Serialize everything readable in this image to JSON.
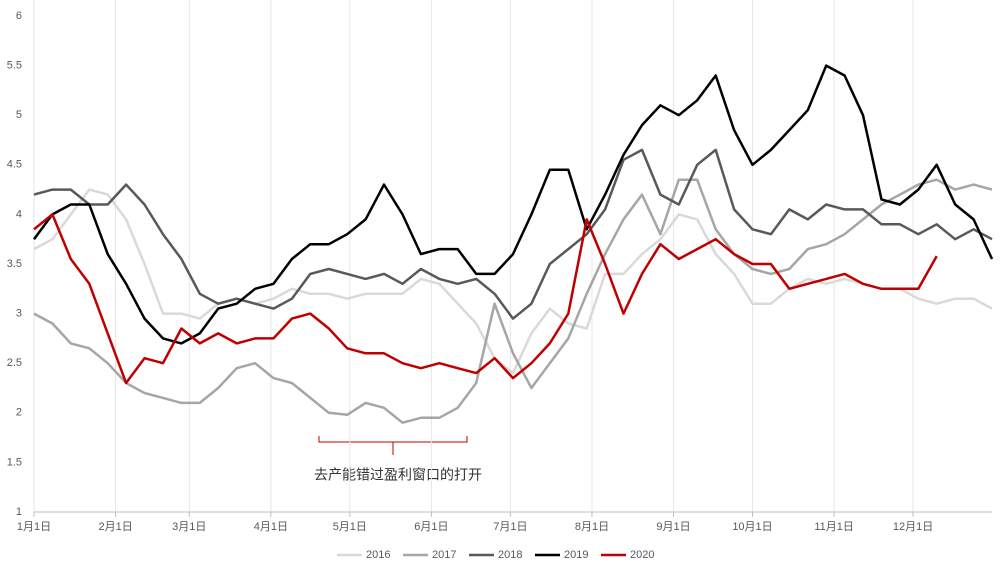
{
  "chart_data": {
    "type": "line",
    "x": [
      1,
      8,
      15,
      22,
      29,
      36,
      43,
      50,
      57,
      64,
      71,
      78,
      85,
      92,
      99,
      106,
      113,
      120,
      127,
      134,
      141,
      148,
      155,
      162,
      169,
      176,
      183,
      190,
      197,
      204,
      211,
      218,
      225,
      232,
      239,
      246,
      253,
      260,
      267,
      274,
      281,
      288,
      295,
      302,
      309,
      316,
      323,
      330,
      337,
      344,
      351,
      358,
      365
    ],
    "xlim": [
      1,
      365
    ],
    "xticks": [
      {
        "value": 1,
        "label": "1月1日"
      },
      {
        "value": 32,
        "label": "2月1日"
      },
      {
        "value": 60,
        "label": "3月1日"
      },
      {
        "value": 91,
        "label": "4月1日"
      },
      {
        "value": 121,
        "label": "5月1日"
      },
      {
        "value": 152,
        "label": "6月1日"
      },
      {
        "value": 182,
        "label": "7月1日"
      },
      {
        "value": 213,
        "label": "8月1日"
      },
      {
        "value": 244,
        "label": "9月1日"
      },
      {
        "value": 274,
        "label": "10月1日"
      },
      {
        "value": 305,
        "label": "11月1日"
      },
      {
        "value": 335,
        "label": "12月1日"
      }
    ],
    "ylim": [
      1,
      6
    ],
    "yticks": [
      1,
      1.5,
      2,
      2.5,
      3,
      3.5,
      4,
      4.5,
      5,
      5.5,
      6
    ],
    "grid": "x",
    "legend": "bottom",
    "annotations": [
      {
        "text": "去产能错过盈利窗口的打开",
        "x_range": [
          119,
          175
        ]
      }
    ],
    "series": [
      {
        "name": "2016",
        "color": "#d9d9d9",
        "values": [
          3.65,
          3.75,
          4.0,
          4.25,
          4.2,
          3.95,
          3.5,
          3.0,
          3.0,
          2.95,
          3.1,
          3.15,
          3.1,
          3.15,
          3.25,
          3.2,
          3.2,
          3.15,
          3.2,
          3.2,
          3.2,
          3.35,
          3.3,
          3.1,
          2.9,
          2.55,
          2.4,
          2.8,
          3.05,
          2.9,
          2.85,
          3.4,
          3.4,
          3.6,
          3.75,
          4.0,
          3.95,
          3.6,
          3.4,
          3.1,
          3.1,
          3.25,
          3.35,
          3.3,
          3.35,
          3.3,
          3.25,
          3.25,
          3.15,
          3.1,
          3.15,
          3.15,
          3.05
        ]
      },
      {
        "name": "2017",
        "color": "#a6a6a6",
        "values": [
          3.0,
          2.9,
          2.7,
          2.65,
          2.5,
          2.3,
          2.2,
          2.15,
          2.1,
          2.1,
          2.25,
          2.45,
          2.5,
          2.35,
          2.3,
          2.15,
          2.0,
          1.98,
          2.1,
          2.05,
          1.9,
          1.95,
          1.95,
          2.05,
          2.3,
          3.1,
          2.6,
          2.25,
          2.5,
          2.75,
          3.2,
          3.6,
          3.95,
          4.2,
          3.8,
          4.35,
          4.35,
          3.85,
          3.6,
          3.45,
          3.4,
          3.45,
          3.65,
          3.7,
          3.8,
          3.95,
          4.1,
          4.2,
          4.3,
          4.35,
          4.25,
          4.3,
          4.25
        ]
      },
      {
        "name": "2018",
        "color": "#595959",
        "values": [
          4.2,
          4.25,
          4.25,
          4.1,
          4.1,
          4.3,
          4.1,
          3.8,
          3.55,
          3.2,
          3.1,
          3.15,
          3.1,
          3.05,
          3.15,
          3.4,
          3.45,
          3.4,
          3.35,
          3.4,
          3.3,
          3.45,
          3.35,
          3.3,
          3.35,
          3.2,
          2.95,
          3.1,
          3.5,
          3.65,
          3.8,
          4.05,
          4.55,
          4.65,
          4.2,
          4.1,
          4.5,
          4.65,
          4.05,
          3.85,
          3.8,
          4.05,
          3.95,
          4.1,
          4.05,
          4.05,
          3.9,
          3.9,
          3.8,
          3.9,
          3.75,
          3.85,
          3.75
        ]
      },
      {
        "name": "2019",
        "color": "#000000",
        "values": [
          3.75,
          4.0,
          4.1,
          4.1,
          3.6,
          3.3,
          2.95,
          2.75,
          2.7,
          2.8,
          3.05,
          3.1,
          3.25,
          3.3,
          3.55,
          3.7,
          3.7,
          3.8,
          3.95,
          4.3,
          4.0,
          3.6,
          3.65,
          3.65,
          3.4,
          3.4,
          3.6,
          4.0,
          4.45,
          4.45,
          3.85,
          4.2,
          4.6,
          4.9,
          5.1,
          5.0,
          5.15,
          5.4,
          4.85,
          4.5,
          4.65,
          4.85,
          5.05,
          5.5,
          5.4,
          5.0,
          4.15,
          4.1,
          4.25,
          4.5,
          4.1,
          3.95,
          3.55
        ]
      },
      {
        "name": "2020",
        "color": "#c00000",
        "values": [
          3.85,
          4.0,
          3.55,
          3.3,
          2.8,
          2.3,
          2.55,
          2.5,
          2.85,
          2.7,
          2.8,
          2.7,
          2.75,
          2.75,
          2.95,
          3.0,
          2.85,
          2.65,
          2.6,
          2.6,
          2.5,
          2.45,
          2.5,
          2.45,
          2.4,
          2.55,
          2.35,
          2.5,
          2.7,
          3.0,
          3.95,
          3.5,
          3.0,
          3.4,
          3.7,
          3.55,
          3.65,
          3.75,
          3.6,
          3.5,
          3.5,
          3.25,
          3.3,
          3.35,
          3.4,
          3.3,
          3.25,
          3.25,
          3.25,
          3.58,
          null,
          null,
          null
        ]
      }
    ]
  }
}
